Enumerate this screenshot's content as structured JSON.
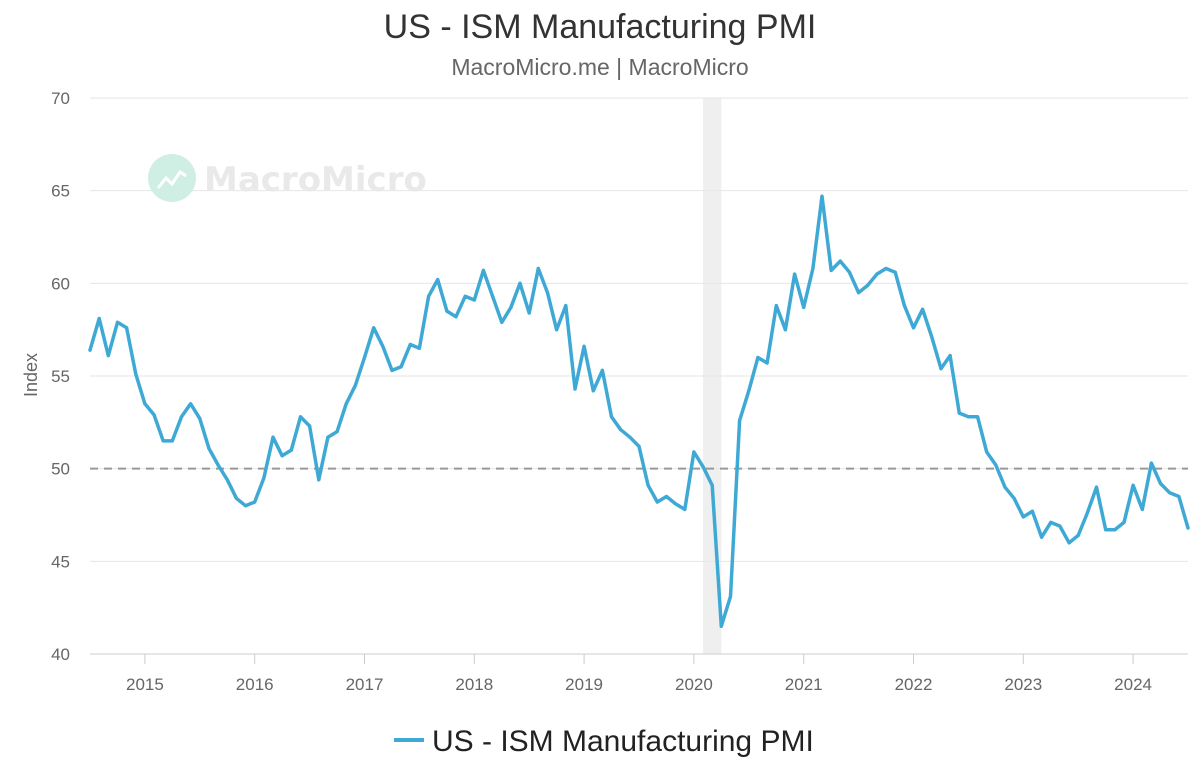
{
  "title": "US - ISM Manufacturing PMI",
  "subtitle": "MacroMicro.me | MacroMicro",
  "watermark": "MacroMicro",
  "colors": {
    "series": "#3FA9D6",
    "grid": "#e6e6e6",
    "reference": "#999999",
    "recession_band": "#efefef",
    "watermark": "#cfeee4"
  },
  "chart_data": {
    "type": "line",
    "title": "US - ISM Manufacturing PMI",
    "subtitle": "MacroMicro.me | MacroMicro",
    "xlabel": "",
    "ylabel": "Index",
    "ylim": [
      40,
      70
    ],
    "xlim": [
      "2014-07",
      "2024-07"
    ],
    "yticks": [
      40,
      45,
      50,
      55,
      60,
      65,
      70
    ],
    "xticks": [
      "2015",
      "2016",
      "2017",
      "2018",
      "2019",
      "2020",
      "2021",
      "2022",
      "2023",
      "2024"
    ],
    "grid": true,
    "legend_position": "bottom-center",
    "reference_line": {
      "y": 50,
      "style": "dashed"
    },
    "shaded_periods": [
      {
        "start": "2020-02",
        "end": "2020-04"
      }
    ],
    "series": [
      {
        "name": "US - ISM Manufacturing PMI",
        "x": [
          "2014-07",
          "2014-08",
          "2014-09",
          "2014-10",
          "2014-11",
          "2014-12",
          "2015-01",
          "2015-02",
          "2015-03",
          "2015-04",
          "2015-05",
          "2015-06",
          "2015-07",
          "2015-08",
          "2015-09",
          "2015-10",
          "2015-11",
          "2015-12",
          "2016-01",
          "2016-02",
          "2016-03",
          "2016-04",
          "2016-05",
          "2016-06",
          "2016-07",
          "2016-08",
          "2016-09",
          "2016-10",
          "2016-11",
          "2016-12",
          "2017-01",
          "2017-02",
          "2017-03",
          "2017-04",
          "2017-05",
          "2017-06",
          "2017-07",
          "2017-08",
          "2017-09",
          "2017-10",
          "2017-11",
          "2017-12",
          "2018-01",
          "2018-02",
          "2018-03",
          "2018-04",
          "2018-05",
          "2018-06",
          "2018-07",
          "2018-08",
          "2018-09",
          "2018-10",
          "2018-11",
          "2018-12",
          "2019-01",
          "2019-02",
          "2019-03",
          "2019-04",
          "2019-05",
          "2019-06",
          "2019-07",
          "2019-08",
          "2019-09",
          "2019-10",
          "2019-11",
          "2019-12",
          "2020-01",
          "2020-02",
          "2020-03",
          "2020-04",
          "2020-05",
          "2020-06",
          "2020-07",
          "2020-08",
          "2020-09",
          "2020-10",
          "2020-11",
          "2020-12",
          "2021-01",
          "2021-02",
          "2021-03",
          "2021-04",
          "2021-05",
          "2021-06",
          "2021-07",
          "2021-08",
          "2021-09",
          "2021-10",
          "2021-11",
          "2021-12",
          "2022-01",
          "2022-02",
          "2022-03",
          "2022-04",
          "2022-05",
          "2022-06",
          "2022-07",
          "2022-08",
          "2022-09",
          "2022-10",
          "2022-11",
          "2022-12",
          "2023-01",
          "2023-02",
          "2023-03",
          "2023-04",
          "2023-05",
          "2023-06",
          "2023-07",
          "2023-08",
          "2023-09",
          "2023-10",
          "2023-11",
          "2023-12",
          "2024-01",
          "2024-02",
          "2024-03",
          "2024-04",
          "2024-05",
          "2024-06",
          "2024-07"
        ],
        "values": [
          56.4,
          58.1,
          56.1,
          57.9,
          57.6,
          55.1,
          53.5,
          52.9,
          51.5,
          51.5,
          52.8,
          53.5,
          52.7,
          51.1,
          50.2,
          49.4,
          48.4,
          48.0,
          48.2,
          49.5,
          51.7,
          50.7,
          51.0,
          52.8,
          52.3,
          49.4,
          51.7,
          52.0,
          53.5,
          54.5,
          56.0,
          57.6,
          56.6,
          55.3,
          55.5,
          56.7,
          56.5,
          59.3,
          60.2,
          58.5,
          58.2,
          59.3,
          59.1,
          60.7,
          59.3,
          57.9,
          58.7,
          60.0,
          58.4,
          60.8,
          59.5,
          57.5,
          58.8,
          54.3,
          56.6,
          54.2,
          55.3,
          52.8,
          52.1,
          51.7,
          51.2,
          49.1,
          48.2,
          48.5,
          48.1,
          47.8,
          50.9,
          50.1,
          49.1,
          41.5,
          43.1,
          52.6,
          54.2,
          56.0,
          55.7,
          58.8,
          57.5,
          60.5,
          58.7,
          60.8,
          64.7,
          60.7,
          61.2,
          60.6,
          59.5,
          59.9,
          60.5,
          60.8,
          60.6,
          58.8,
          57.6,
          58.6,
          57.1,
          55.4,
          56.1,
          53.0,
          52.8,
          52.8,
          50.9,
          50.2,
          49.0,
          48.4,
          47.4,
          47.7,
          46.3,
          47.1,
          46.9,
          46.0,
          46.4,
          47.6,
          49.0,
          46.7,
          46.7,
          47.1,
          49.1,
          47.8,
          50.3,
          49.2,
          48.7,
          48.5,
          46.8
        ]
      }
    ]
  }
}
